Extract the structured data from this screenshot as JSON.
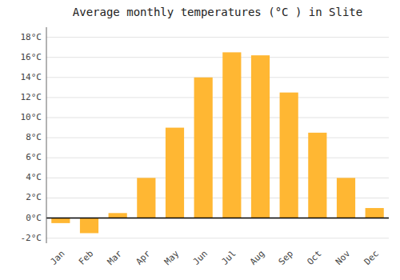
{
  "chart_data": {
    "type": "bar",
    "title": "Average monthly temperatures (°C ) in Slite",
    "categories": [
      "Jan",
      "Feb",
      "Mar",
      "Apr",
      "May",
      "Jun",
      "Jul",
      "Aug",
      "Sep",
      "Oct",
      "Nov",
      "Dec"
    ],
    "values": [
      -0.5,
      -1.5,
      0.5,
      4.0,
      9.0,
      14.0,
      16.5,
      16.2,
      12.5,
      8.5,
      4.0,
      1.0
    ],
    "color": "#FFB733",
    "ylim": [
      -2.5,
      19.0
    ],
    "yticks": [
      {
        "value": -2,
        "label": "-2°C"
      },
      {
        "value": 0,
        "label": "0°C"
      },
      {
        "value": 2,
        "label": "2°C"
      },
      {
        "value": 4,
        "label": "4°C"
      },
      {
        "value": 6,
        "label": "6°C"
      },
      {
        "value": 8,
        "label": "8°C"
      },
      {
        "value": 10,
        "label": "10°C"
      },
      {
        "value": 12,
        "label": "12°C"
      },
      {
        "value": 14,
        "label": "14°C"
      },
      {
        "value": 16,
        "label": "16°C"
      },
      {
        "value": 18,
        "label": "18°C"
      }
    ],
    "grid": true
  }
}
